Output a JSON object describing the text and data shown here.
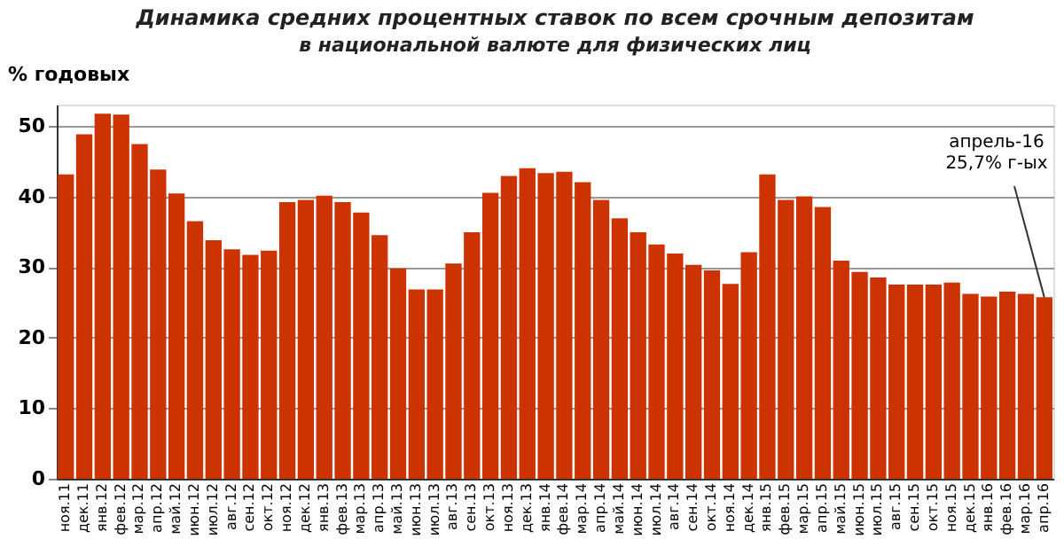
{
  "chart_data": {
    "type": "bar",
    "title": "Динамика средних процентных ставок по всем срочным депозитам",
    "subtitle": "в национальной валюте для физических лиц",
    "ylabel": "% годовых",
    "categories": [
      "ноя.11",
      "дек.11",
      "янв.12",
      "фев.12",
      "мар.12",
      "апр.12",
      "май.12",
      "июн.12",
      "июл.12",
      "авг.12",
      "сен.12",
      "окт.12",
      "ноя.12",
      "дек.12",
      "янв.13",
      "фев.13",
      "мар.13",
      "апр.13",
      "май.13",
      "июн.13",
      "июл.13",
      "авг.13",
      "сен.13",
      "окт.13",
      "ноя.13",
      "дек.13",
      "янв.14",
      "фев.14",
      "мар.14",
      "апр.14",
      "май.14",
      "июн.14",
      "июл.14",
      "авг.14",
      "сен.14",
      "окт.14",
      "ноя.14",
      "дек.14",
      "янв.15",
      "фев.15",
      "мар.15",
      "апр.15",
      "май.15",
      "июн.15",
      "июл.15",
      "авг.15",
      "сен.15",
      "окт.15",
      "ноя.15",
      "дек.15",
      "янв.16",
      "фев.16",
      "мар.16",
      "апр.16"
    ],
    "values": [
      43.1,
      48.8,
      51.7,
      51.6,
      47.4,
      43.8,
      40.4,
      36.5,
      33.8,
      32.5,
      31.7,
      32.3,
      39.2,
      39.5,
      40.1,
      39.2,
      37.7,
      34.5,
      29.8,
      26.8,
      26.8,
      30.5,
      34.9,
      40.5,
      42.9,
      44.0,
      43.3,
      43.5,
      42.0,
      39.5,
      36.9,
      34.9,
      33.2,
      31.9,
      30.3,
      29.5,
      27.6,
      32.1,
      43.1,
      39.5,
      40.0,
      38.5,
      30.9,
      29.3,
      28.5,
      27.5,
      27.5,
      27.5,
      27.8,
      26.2,
      25.8,
      26.5,
      26.2,
      25.7
    ],
    "color": "#cc3300",
    "ylim": [
      0,
      53
    ],
    "yticks": [
      0,
      10,
      20,
      30,
      40,
      50
    ],
    "grid": "y",
    "annotations": [
      {
        "text": "апрель-16\n25,7% г-ых",
        "x": "апр.16",
        "y": 25.7
      }
    ]
  }
}
